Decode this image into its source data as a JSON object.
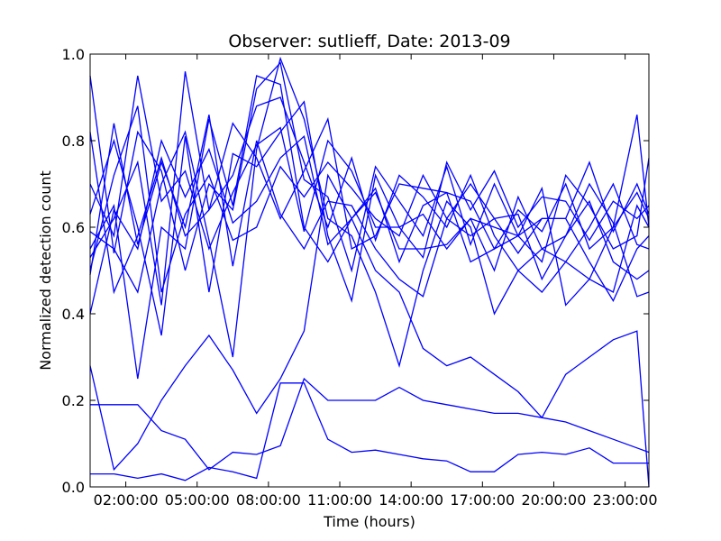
{
  "chart_data": {
    "type": "line",
    "title": "Observer: sutlieff, Date: 2013-09",
    "xlabel": "Time (hours)",
    "ylabel": "Normalized detection count",
    "x_unit": "hours",
    "xlim": [
      0.5,
      24.0
    ],
    "ylim": [
      0.0,
      1.0
    ],
    "x_ticks": [
      2,
      5,
      8,
      11,
      14,
      17,
      20,
      23
    ],
    "x_tick_labels": [
      "02:00:00",
      "05:00:00",
      "08:00:00",
      "11:00:00",
      "14:00:00",
      "17:00:00",
      "20:00:00",
      "23:00:00"
    ],
    "y_ticks": [
      0.0,
      0.2,
      0.4,
      0.6,
      0.8,
      1.0
    ],
    "y_tick_labels": [
      "0.0",
      "0.2",
      "0.4",
      "0.6",
      "0.8",
      "1.0"
    ],
    "grid": false,
    "legend": "none",
    "line_color": "#0000ff",
    "x": [
      0.5,
      1.5,
      2.5,
      3.5,
      4.5,
      5.5,
      6.5,
      7.5,
      8.5,
      9.5,
      10.5,
      11.5,
      12.5,
      13.5,
      14.5,
      15.5,
      16.5,
      17.5,
      18.5,
      19.5,
      20.5,
      21.5,
      22.5,
      23.5,
      24.0
    ],
    "series": [
      {
        "values": [
          0.03,
          0.03,
          0.02,
          0.03,
          0.015,
          0.045,
          0.035,
          0.02,
          0.24,
          0.24,
          0.11,
          0.08,
          0.085,
          0.075,
          0.065,
          0.06,
          0.035,
          0.035,
          0.075,
          0.08,
          0.075,
          0.09,
          0.055,
          0.055,
          0.055
        ]
      },
      {
        "values": [
          0.19,
          0.19,
          0.19,
          0.13,
          0.11,
          0.04,
          0.08,
          0.075,
          0.095,
          0.25,
          0.2,
          0.2,
          0.2,
          0.23,
          0.2,
          0.19,
          0.18,
          0.17,
          0.17,
          0.16,
          0.15,
          0.13,
          0.11,
          0.09,
          0.08
        ]
      },
      {
        "values": [
          0.28,
          0.04,
          0.1,
          0.2,
          0.28,
          0.35,
          0.27,
          0.17,
          0.25,
          0.36,
          0.72,
          0.62,
          0.5,
          0.45,
          0.32,
          0.28,
          0.3,
          0.26,
          0.22,
          0.16,
          0.26,
          0.3,
          0.34,
          0.36,
          0.0
        ]
      },
      {
        "values": [
          0.59,
          0.55,
          0.45,
          0.7,
          0.82,
          0.57,
          0.3,
          0.78,
          0.99,
          0.85,
          0.62,
          0.58,
          0.45,
          0.28,
          0.5,
          0.66,
          0.6,
          0.4,
          0.5,
          0.45,
          0.52,
          0.48,
          0.6,
          0.86,
          0.6
        ]
      },
      {
        "values": [
          0.55,
          0.65,
          0.25,
          0.6,
          0.55,
          0.85,
          0.65,
          0.95,
          0.93,
          0.6,
          0.52,
          0.62,
          0.68,
          0.55,
          0.55,
          0.56,
          0.62,
          0.6,
          0.58,
          0.69,
          0.42,
          0.48,
          0.45,
          0.65,
          0.6
        ]
      },
      {
        "values": [
          0.5,
          0.72,
          0.88,
          0.45,
          0.63,
          0.72,
          0.57,
          0.6,
          0.74,
          0.67,
          0.75,
          0.69,
          0.62,
          0.58,
          0.72,
          0.62,
          0.7,
          0.62,
          0.54,
          0.62,
          0.62,
          0.52,
          0.43,
          0.55,
          0.58
        ]
      },
      {
        "values": [
          0.63,
          0.8,
          0.6,
          0.35,
          0.81,
          0.45,
          0.77,
          0.74,
          0.82,
          0.89,
          0.58,
          0.43,
          0.72,
          0.6,
          0.63,
          0.55,
          0.62,
          0.5,
          0.67,
          0.55,
          0.58,
          0.66,
          0.52,
          0.48,
          0.5
        ]
      },
      {
        "values": [
          0.82,
          0.45,
          0.58,
          0.76,
          0.58,
          0.64,
          0.84,
          0.76,
          0.62,
          0.73,
          0.85,
          0.55,
          0.58,
          0.7,
          0.69,
          0.68,
          0.52,
          0.55,
          0.58,
          0.52,
          0.72,
          0.65,
          0.55,
          0.58,
          0.76
        ]
      },
      {
        "values": [
          0.49,
          0.84,
          0.56,
          0.75,
          0.6,
          0.86,
          0.51,
          0.8,
          0.63,
          0.55,
          0.66,
          0.65,
          0.55,
          0.48,
          0.44,
          0.62,
          0.58,
          0.62,
          0.63,
          0.48,
          0.58,
          0.7,
          0.61,
          0.44,
          0.45
        ]
      },
      {
        "values": [
          0.95,
          0.54,
          0.82,
          0.73,
          0.5,
          0.7,
          0.64,
          0.92,
          0.98,
          0.71,
          0.67,
          0.5,
          0.74,
          0.66,
          0.58,
          0.74,
          0.56,
          0.7,
          0.58,
          0.62,
          0.62,
          0.75,
          0.59,
          0.7,
          0.63
        ]
      },
      {
        "values": [
          0.53,
          0.62,
          0.75,
          0.42,
          0.96,
          0.64,
          0.72,
          0.88,
          0.9,
          0.75,
          0.6,
          0.76,
          0.57,
          0.72,
          0.67,
          0.6,
          0.72,
          0.58,
          0.5,
          0.55,
          0.52,
          0.6,
          0.7,
          0.56,
          0.55
        ]
      },
      {
        "values": [
          0.7,
          0.58,
          0.95,
          0.66,
          0.73,
          0.55,
          0.68,
          0.79,
          0.83,
          0.59,
          0.8,
          0.73,
          0.6,
          0.6,
          0.53,
          0.75,
          0.64,
          0.73,
          0.6,
          0.67,
          0.66,
          0.57,
          0.66,
          0.62,
          0.65
        ]
      },
      {
        "values": [
          0.4,
          0.64,
          0.55,
          0.8,
          0.67,
          0.78,
          0.61,
          0.66,
          0.76,
          0.81,
          0.56,
          0.62,
          0.69,
          0.52,
          0.65,
          0.68,
          0.66,
          0.55,
          0.64,
          0.59,
          0.7,
          0.55,
          0.6,
          0.68,
          0.62
        ]
      }
    ]
  }
}
